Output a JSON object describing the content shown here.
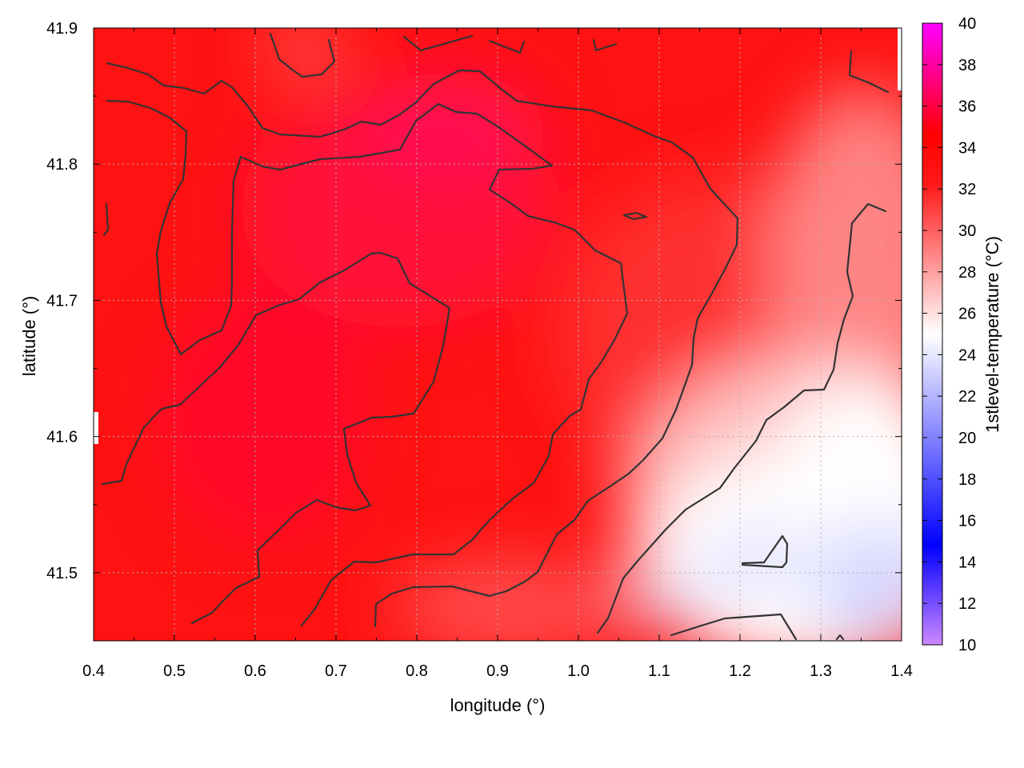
{
  "chart_data": {
    "type": "heatmap",
    "title": "",
    "xlabel": "longitude (°)",
    "ylabel": "latitude (°)",
    "colorbar_label": "1stlevel-temperature (°C)",
    "xlim": [
      0.4,
      1.4
    ],
    "ylim": [
      41.45,
      41.9
    ],
    "clim": [
      10,
      40
    ],
    "x_ticks": [
      "0.4",
      "0.5",
      "0.6",
      "0.7",
      "0.8",
      "0.9",
      "1.0",
      "1.1",
      "1.2",
      "1.3",
      "1.4"
    ],
    "y_ticks": [
      "41.5",
      "41.6",
      "41.7",
      "41.8",
      "41.9"
    ],
    "colorbar_ticks": [
      "10",
      "12",
      "14",
      "16",
      "18",
      "20",
      "22",
      "24",
      "26",
      "28",
      "30",
      "32",
      "34",
      "36",
      "38",
      "40"
    ],
    "colormap": [
      "#cc88ff",
      "#0000ff",
      "#ffffff",
      "#ff0000",
      "#ff00ff"
    ],
    "grid": true,
    "field_approx": [
      {
        "lon": 0.45,
        "lat": 41.88,
        "temp": 32
      },
      {
        "lon": 0.75,
        "lat": 41.78,
        "temp": 34
      },
      {
        "lon": 0.85,
        "lat": 41.83,
        "temp": 35
      },
      {
        "lon": 0.7,
        "lat": 41.62,
        "temp": 33
      },
      {
        "lon": 1.0,
        "lat": 41.7,
        "temp": 31
      },
      {
        "lon": 1.15,
        "lat": 41.65,
        "temp": 28
      },
      {
        "lon": 1.3,
        "lat": 41.75,
        "temp": 27
      },
      {
        "lon": 1.2,
        "lat": 41.5,
        "temp": 23
      },
      {
        "lon": 1.3,
        "lat": 41.47,
        "temp": 22
      },
      {
        "lon": 1.05,
        "lat": 41.47,
        "temp": 26
      }
    ]
  }
}
